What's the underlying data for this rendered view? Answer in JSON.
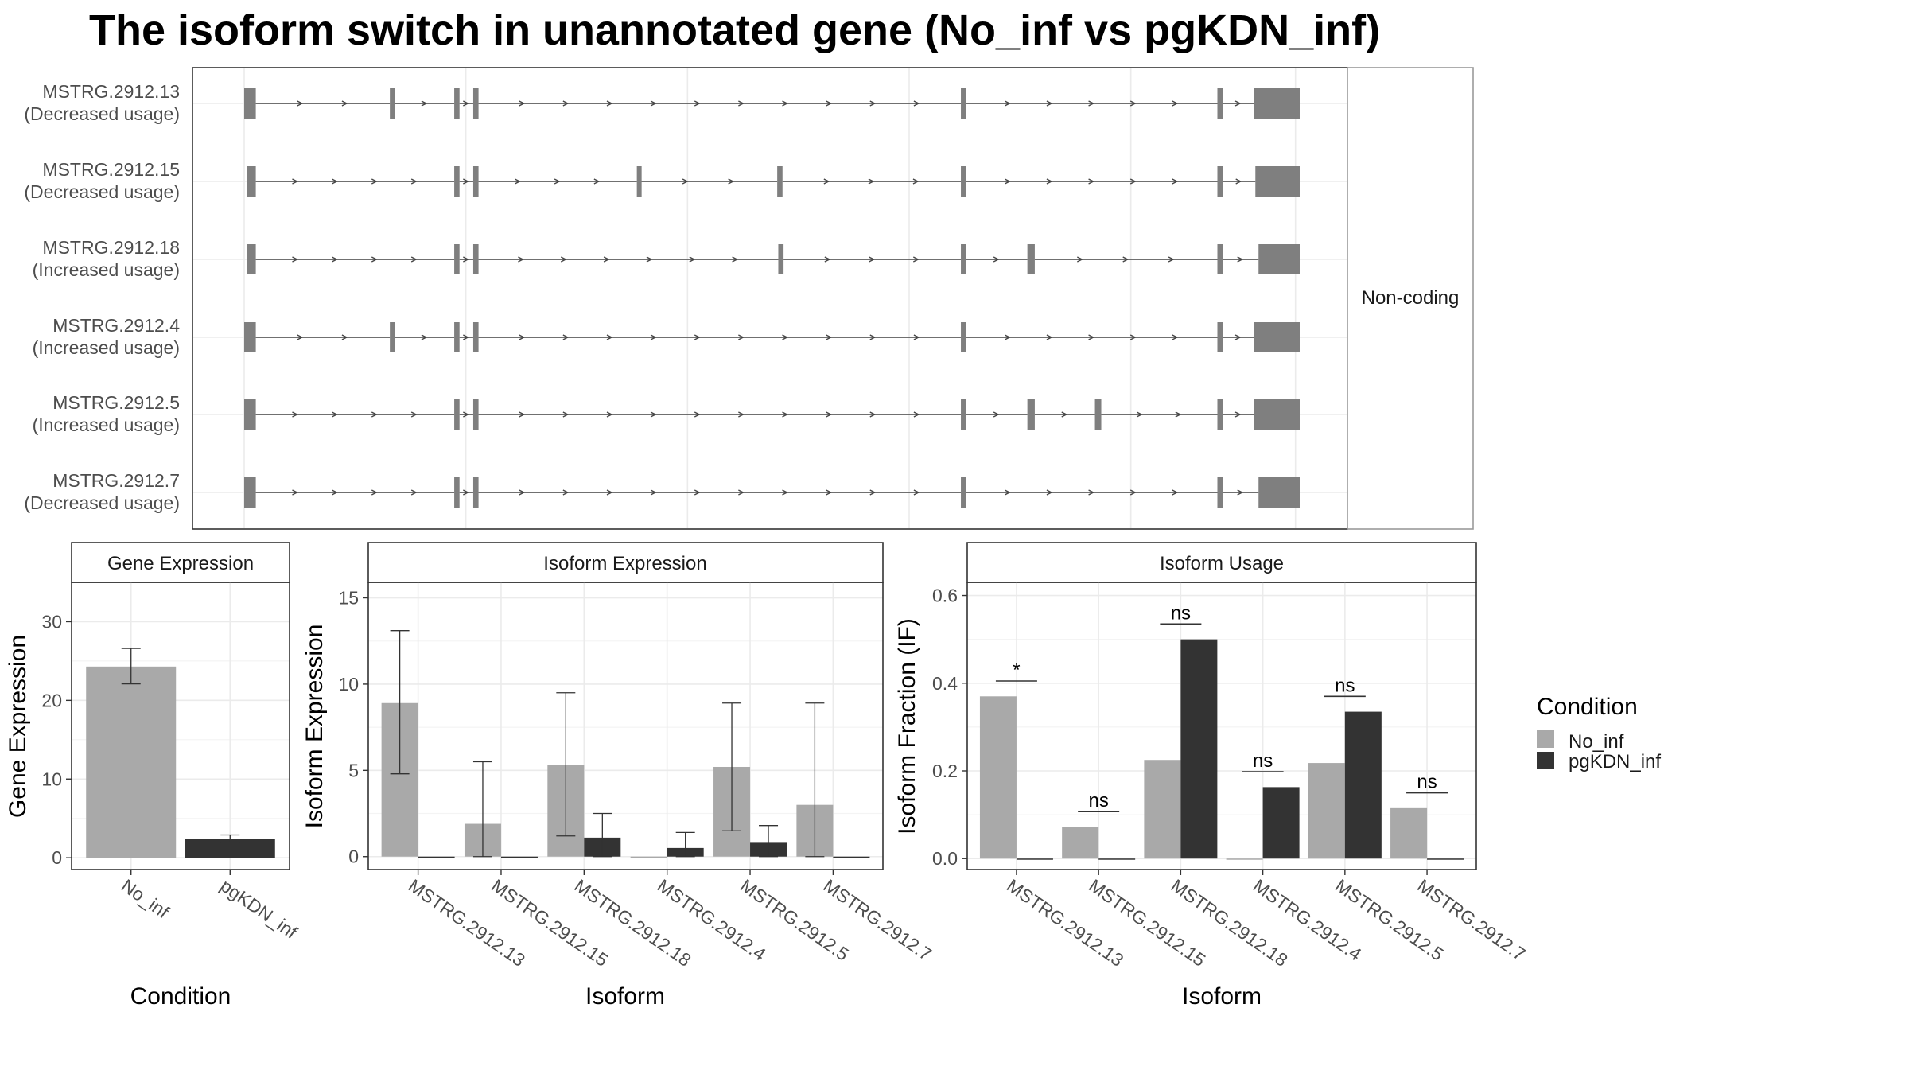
{
  "title": "The isoform switch in unannotated gene (No_inf vs pgKDN_inf)",
  "colors": {
    "No_inf": "#a9a9a9",
    "pgKDN_inf": "#333333",
    "exon": "#7f7f7f",
    "intron": "#444444",
    "grid": "#ebebeb",
    "frame": "#333333",
    "strip_border": "#999999"
  },
  "chart_data": [
    {
      "type": "transcript-structure",
      "title": "",
      "facet_label": "Non-coding",
      "transcripts": [
        {
          "id": "MSTRG.2912.13",
          "usage": "(Decreased usage)",
          "exons": [
            [
              0.0,
              0.011
            ],
            [
              0.138,
              0.143
            ],
            [
              0.199,
              0.204
            ],
            [
              0.217,
              0.222
            ],
            [
              0.679,
              0.684
            ],
            [
              0.922,
              0.927
            ],
            [
              0.957,
              1.0
            ]
          ]
        },
        {
          "id": "MSTRG.2912.15",
          "usage": "(Decreased usage)",
          "exons": [
            [
              0.003,
              0.011
            ],
            [
              0.199,
              0.204
            ],
            [
              0.217,
              0.222
            ],
            [
              0.372,
              0.375
            ],
            [
              0.505,
              0.51
            ],
            [
              0.679,
              0.684
            ],
            [
              0.922,
              0.927
            ],
            [
              0.958,
              1.0
            ]
          ]
        },
        {
          "id": "MSTRG.2912.18",
          "usage": "(Increased usage)",
          "exons": [
            [
              0.003,
              0.011
            ],
            [
              0.199,
              0.204
            ],
            [
              0.217,
              0.222
            ],
            [
              0.506,
              0.511
            ],
            [
              0.679,
              0.684
            ],
            [
              0.742,
              0.749
            ],
            [
              0.922,
              0.927
            ],
            [
              0.961,
              1.0
            ]
          ]
        },
        {
          "id": "MSTRG.2912.4",
          "usage": "(Increased usage)",
          "exons": [
            [
              0.0,
              0.011
            ],
            [
              0.138,
              0.143
            ],
            [
              0.199,
              0.204
            ],
            [
              0.217,
              0.222
            ],
            [
              0.679,
              0.684
            ],
            [
              0.922,
              0.927
            ],
            [
              0.957,
              1.0
            ]
          ]
        },
        {
          "id": "MSTRG.2912.5",
          "usage": "(Increased usage)",
          "exons": [
            [
              0.0,
              0.011
            ],
            [
              0.199,
              0.204
            ],
            [
              0.217,
              0.222
            ],
            [
              0.679,
              0.684
            ],
            [
              0.742,
              0.749
            ],
            [
              0.806,
              0.812
            ],
            [
              0.922,
              0.927
            ],
            [
              0.957,
              1.0
            ]
          ]
        },
        {
          "id": "MSTRG.2912.7",
          "usage": "(Decreased usage)",
          "exons": [
            [
              0.0,
              0.011
            ],
            [
              0.199,
              0.204
            ],
            [
              0.217,
              0.222
            ],
            [
              0.679,
              0.684
            ],
            [
              0.922,
              0.927
            ],
            [
              0.961,
              1.0
            ]
          ]
        }
      ]
    },
    {
      "type": "bar",
      "title": "Gene Expression",
      "xlabel": "Condition",
      "ylabel": "Gene Expression",
      "categories": [
        "No_inf",
        "pgKDN_inf"
      ],
      "values": [
        24.3,
        2.4
      ],
      "errors": [
        [
          22.1,
          26.6
        ],
        [
          1.9,
          2.9
        ]
      ],
      "ylim": [
        -1.5,
        35
      ],
      "yticks": [
        0,
        10,
        20,
        30
      ]
    },
    {
      "type": "bar",
      "title": "Isoform Expression",
      "xlabel": "Isoform",
      "ylabel": "Isoform Expression",
      "categories": [
        "MSTRG.2912.13",
        "MSTRG.2912.15",
        "MSTRG.2912.18",
        "MSTRG.2912.4",
        "MSTRG.2912.5",
        "MSTRG.2912.7"
      ],
      "series": [
        {
          "name": "No_inf",
          "values": [
            8.9,
            1.9,
            5.3,
            0.0,
            5.2,
            3.0
          ],
          "errors": [
            [
              4.8,
              13.1
            ],
            [
              0.0,
              5.5
            ],
            [
              1.2,
              9.5
            ],
            null,
            [
              1.5,
              8.9
            ],
            [
              0.0,
              8.9
            ]
          ]
        },
        {
          "name": "pgKDN_inf",
          "values": [
            0.0,
            0.0,
            1.1,
            0.5,
            0.8,
            0.0
          ],
          "errors": [
            null,
            null,
            [
              0.0,
              2.5
            ],
            [
              0.0,
              1.4
            ],
            [
              0.0,
              1.8
            ],
            null
          ]
        }
      ],
      "ylim": [
        -0.75,
        15.9
      ],
      "yticks": [
        0,
        5,
        10,
        15
      ]
    },
    {
      "type": "bar",
      "title": "Isoform Usage",
      "xlabel": "Isoform",
      "ylabel": "Isoform Fraction (IF)",
      "categories": [
        "MSTRG.2912.13",
        "MSTRG.2912.15",
        "MSTRG.2912.18",
        "MSTRG.2912.4",
        "MSTRG.2912.5",
        "MSTRG.2912.7"
      ],
      "series": [
        {
          "name": "No_inf",
          "values": [
            0.37,
            0.072,
            0.225,
            0.0,
            0.218,
            0.115
          ]
        },
        {
          "name": "pgKDN_inf",
          "values": [
            0.0,
            0.0,
            0.5,
            0.163,
            0.335,
            0.0
          ]
        }
      ],
      "significance": [
        "*",
        "ns",
        "ns",
        "ns",
        "ns",
        "ns"
      ],
      "ylim": [
        -0.025,
        0.63
      ],
      "yticks": [
        "0.0",
        "0.2",
        "0.4",
        "0.6"
      ]
    }
  ],
  "legend": {
    "title": "Condition",
    "items": [
      {
        "label": "No_inf"
      },
      {
        "label": "pgKDN_inf"
      }
    ]
  }
}
